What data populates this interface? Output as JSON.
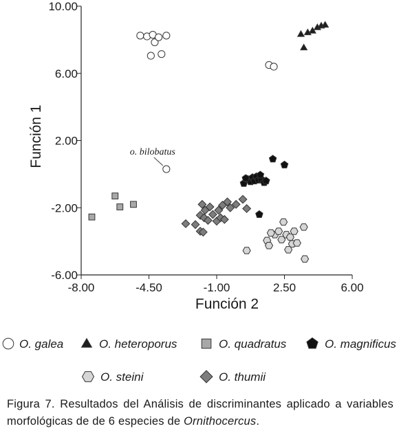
{
  "chart_data": {
    "type": "scatter",
    "title": "",
    "xlabel": "Función 2",
    "ylabel": "Función 1",
    "xlim": [
      -8,
      6
    ],
    "ylim": [
      -6,
      10
    ],
    "xticks": [
      "-8.00",
      "-4.50",
      "-1.00",
      "2.50",
      "6.00"
    ],
    "yticks": [
      "-6.00",
      "-2.00",
      "2.00",
      "6.00",
      "10.00"
    ],
    "legend_position": "bottom",
    "annotation": {
      "text": "o. bilobatus",
      "x": -3.6,
      "y": 0.3
    },
    "series": [
      {
        "name": "O. galea",
        "marker": "circle",
        "color": "#ffffff",
        "points": [
          [
            -4.95,
            8.25
          ],
          [
            -4.6,
            8.2
          ],
          [
            -4.3,
            8.3
          ],
          [
            -4.2,
            7.85
          ],
          [
            -4.0,
            8.15
          ],
          [
            -3.6,
            8.25
          ],
          [
            -4.4,
            7.05
          ],
          [
            -3.85,
            7.15
          ],
          [
            -3.6,
            0.3
          ],
          [
            1.7,
            6.5
          ],
          [
            1.95,
            6.4
          ]
        ]
      },
      {
        "name": "O. heteroporus",
        "marker": "triangle",
        "color": "#1f1f1f",
        "points": [
          [
            3.35,
            8.35
          ],
          [
            3.7,
            8.45
          ],
          [
            3.95,
            8.55
          ],
          [
            4.2,
            8.75
          ],
          [
            4.4,
            8.85
          ],
          [
            4.6,
            8.9
          ],
          [
            3.5,
            7.55
          ]
        ]
      },
      {
        "name": "O. quadratus",
        "marker": "square",
        "color": "#a8a8a8",
        "points": [
          [
            -7.45,
            -2.55
          ],
          [
            -6.25,
            -1.3
          ],
          [
            -6.0,
            -1.95
          ],
          [
            -5.3,
            -1.8
          ]
        ]
      },
      {
        "name": "O. magnificus",
        "marker": "pentagon",
        "color": "#111111",
        "points": [
          [
            0.4,
            -0.55
          ],
          [
            0.6,
            -0.3
          ],
          [
            0.75,
            -0.45
          ],
          [
            0.85,
            -0.2
          ],
          [
            0.95,
            -0.4
          ],
          [
            1.05,
            -0.15
          ],
          [
            1.15,
            -0.35
          ],
          [
            1.3,
            -0.3
          ],
          [
            1.45,
            -0.5
          ],
          [
            1.55,
            -0.4
          ],
          [
            0.5,
            -0.25
          ],
          [
            1.25,
            -0.05
          ],
          [
            1.9,
            0.9
          ],
          [
            2.5,
            0.55
          ],
          [
            1.2,
            -2.4
          ]
        ]
      },
      {
        "name": "O. steini",
        "marker": "hexagon",
        "color": "#d6d6d6",
        "points": [
          [
            0.55,
            -4.55
          ],
          [
            1.6,
            -3.95
          ],
          [
            1.7,
            -4.25
          ],
          [
            2.0,
            -3.6
          ],
          [
            2.2,
            -3.4
          ],
          [
            2.45,
            -2.85
          ],
          [
            2.6,
            -3.6
          ],
          [
            2.8,
            -3.75
          ],
          [
            3.0,
            -3.4
          ],
          [
            2.9,
            -4.15
          ],
          [
            3.15,
            -4.1
          ],
          [
            2.7,
            -4.5
          ],
          [
            3.5,
            -3.15
          ],
          [
            3.55,
            -5.05
          ],
          [
            1.8,
            -3.5
          ],
          [
            2.35,
            -3.9
          ]
        ]
      },
      {
        "name": "O. thumii",
        "marker": "diamond",
        "color": "#7d7d7d",
        "points": [
          [
            -2.6,
            -2.95
          ],
          [
            -2.1,
            -3.0
          ],
          [
            -1.85,
            -3.4
          ],
          [
            -1.7,
            -3.45
          ],
          [
            -1.85,
            -2.45
          ],
          [
            -1.65,
            -2.6
          ],
          [
            -1.45,
            -2.75
          ],
          [
            -1.6,
            -2.15
          ],
          [
            -1.35,
            -1.95
          ],
          [
            -1.2,
            -2.4
          ],
          [
            -1.0,
            -2.8
          ],
          [
            -0.8,
            -2.6
          ],
          [
            -0.6,
            -2.7
          ],
          [
            -0.9,
            -2.15
          ],
          [
            -0.7,
            -1.85
          ],
          [
            -0.45,
            -1.65
          ],
          [
            -0.3,
            -2.0
          ],
          [
            0.0,
            -1.8
          ],
          [
            0.35,
            -1.5
          ],
          [
            0.55,
            -2.05
          ],
          [
            -1.75,
            -1.8
          ]
        ]
      }
    ]
  },
  "caption": {
    "prefix": "Figura 7. Resultados del Análisis de discriminantes aplicado a variables morfológicas de de 6 especies de ",
    "genus": "Ornithocercus",
    "suffix": "."
  }
}
